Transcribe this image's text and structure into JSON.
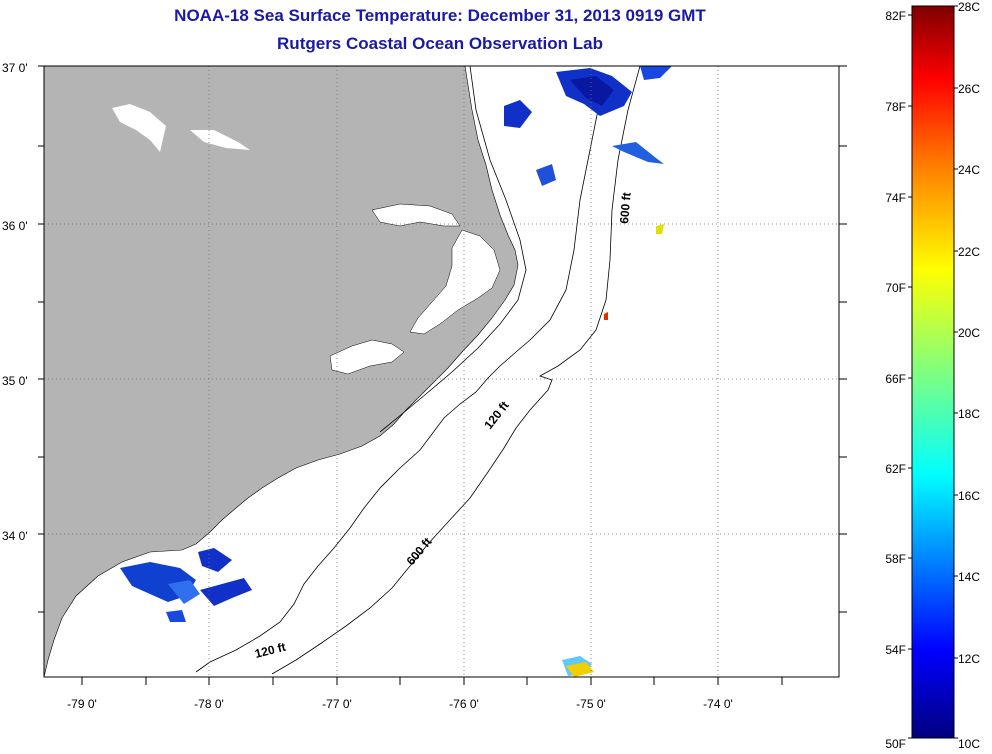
{
  "header": {
    "title": "NOAA-18 Sea Surface Temperature:  December 31, 2013 0919 GMT",
    "subtitle": "Rutgers Coastal Ocean Observation Lab"
  },
  "map": {
    "lat_labels": [
      "37 0'",
      "36 0'",
      "35 0'",
      "34 0'"
    ],
    "lon_labels": [
      "-79 0'",
      "-78 0'",
      "-77 0'",
      "-76 0'",
      "-75 0'",
      "-74 0'"
    ],
    "contour_labels": [
      "600 ft",
      "120 ft",
      "600 ft",
      "120 ft"
    ],
    "land_color": "#b4b4b4",
    "ocean_color": "#ffffff"
  },
  "colorbar": {
    "fahrenheit_labels": [
      "82F",
      "78F",
      "74F",
      "70F",
      "66F",
      "62F",
      "58F",
      "54F",
      "50F"
    ],
    "celsius_labels": [
      "28C",
      "26C",
      "24C",
      "22C",
      "20C",
      "18C",
      "16C",
      "14C",
      "12C",
      "10C"
    ],
    "colors": [
      "#00007f",
      "#0000ff",
      "#007fff",
      "#00ffff",
      "#7fff7f",
      "#ffff00",
      "#ff7f00",
      "#ff0000",
      "#7f0000"
    ]
  }
}
